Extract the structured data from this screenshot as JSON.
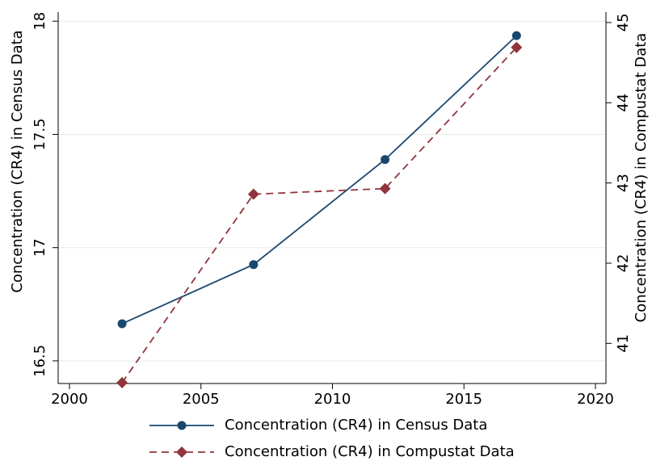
{
  "chart_data": {
    "type": "line",
    "x": [
      2002,
      2007,
      2012,
      2017
    ],
    "series": [
      {
        "name": "Concentration (CR4) in Census Data",
        "color": "#1a476f",
        "marker": "circle",
        "dash": false,
        "values": [
          16.664,
          16.925,
          17.389,
          17.936
        ]
      },
      {
        "name": "Concentration (CR4) in Compustat Data",
        "color": "#90353b",
        "marker": "diamond",
        "dash": true,
        "axis": "y2",
        "values": [
          40.51,
          42.86,
          42.93,
          44.69
        ]
      }
    ],
    "ylabel": "Concentration (CR4) in Census Data",
    "y2label": "Concentration (CR4) in Compustat Data",
    "xlim": [
      1999.57,
      2020.4
    ],
    "xticks": [
      2000,
      2005,
      2010,
      2015,
      2020
    ],
    "ylim": [
      16.4,
      18.04
    ],
    "yticks": [
      16.5,
      17,
      17.5,
      18
    ],
    "y2lim": [
      40.5,
      45.13
    ],
    "y2ticks": [
      41,
      42,
      43,
      44,
      45
    ],
    "grid": true,
    "legend": "bottom"
  }
}
